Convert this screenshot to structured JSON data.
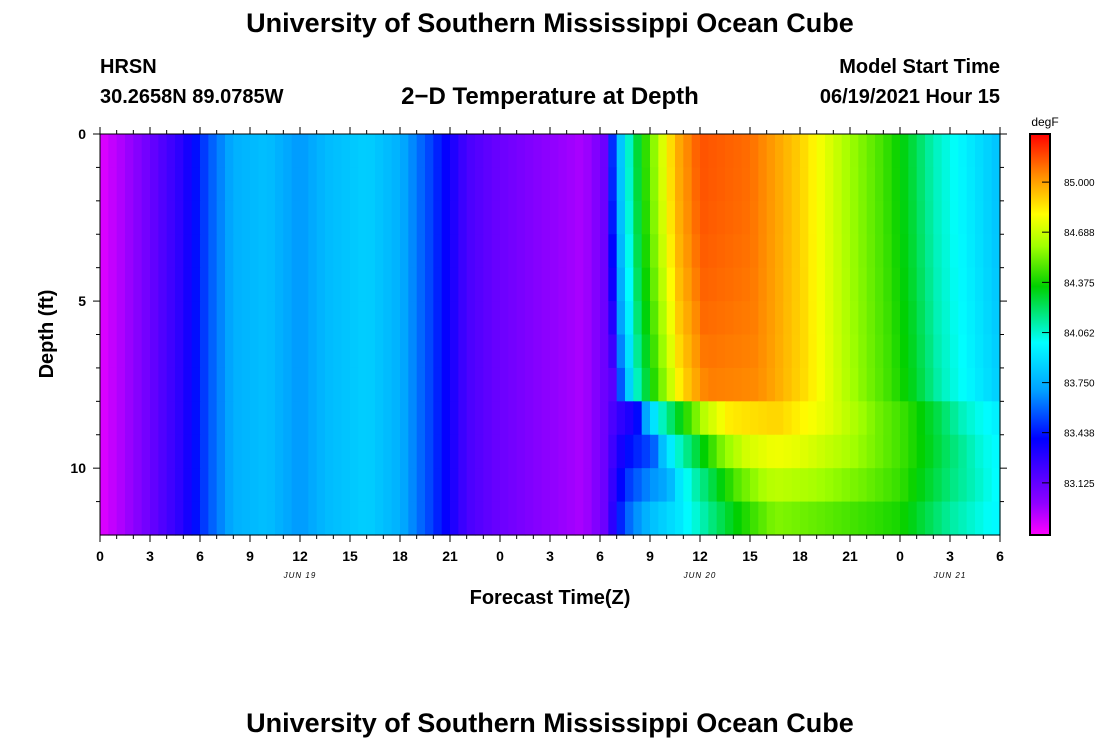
{
  "page": {
    "title_top": "University of Southern Mississippi Ocean Cube",
    "title_bottom": "University of Southern Mississippi Ocean Cube",
    "station": "HRSN",
    "coords": "30.2658N  89.0785W",
    "subtitle": "2−D Temperature at Depth",
    "model_start_label": "Model Start Time",
    "model_start_value": "06/19/2021 Hour 15"
  },
  "chart_data": {
    "type": "heatmap",
    "title": "2−D Temperature at Depth",
    "xlabel": "Forecast Time(Z)",
    "ylabel": "Depth (ft)",
    "xlim": [
      0,
      54
    ],
    "ylim": [
      0,
      12
    ],
    "x_ticks": [
      0,
      3,
      6,
      9,
      12,
      15,
      18,
      21,
      24,
      27,
      30,
      33,
      36,
      39,
      42,
      45,
      48,
      51,
      54
    ],
    "x_tick_labels": [
      "0",
      "3",
      "6",
      "9",
      "12",
      "15",
      "18",
      "21",
      "0",
      "3",
      "6",
      "9",
      "12",
      "15",
      "18",
      "21",
      "0",
      "3",
      "6"
    ],
    "y_ticks": [
      0,
      5,
      10
    ],
    "y_tick_labels": [
      "0",
      "5",
      "10"
    ],
    "date_labels": [
      {
        "x": 12,
        "text": "JUN 19"
      },
      {
        "x": 36,
        "text": "JUN 20"
      },
      {
        "x": 51,
        "text": "JUN 21"
      }
    ],
    "colorbar": {
      "unit": "degF",
      "min": 82.8,
      "max": 85.3,
      "ticks": [
        83.125,
        83.438,
        83.75,
        84.062,
        84.375,
        84.688,
        85.0
      ],
      "tick_labels": [
        "83.125",
        "83.438",
        "83.750",
        "84.062",
        "84.375",
        "84.688",
        "85.000"
      ]
    },
    "surface_profile": [
      [
        0,
        82.85
      ],
      [
        2,
        83.0
      ],
      [
        5,
        83.3
      ],
      [
        6.5,
        83.55
      ],
      [
        8,
        83.75
      ],
      [
        10,
        83.8
      ],
      [
        12,
        83.68
      ],
      [
        13.5,
        83.78
      ],
      [
        16,
        83.85
      ],
      [
        18,
        83.75
      ],
      [
        20,
        83.5
      ],
      [
        22,
        83.2
      ],
      [
        24,
        83.1
      ],
      [
        27,
        83.0
      ],
      [
        29,
        82.95
      ],
      [
        30.3,
        83.1
      ],
      [
        31,
        83.7
      ],
      [
        32,
        84.2
      ],
      [
        33.5,
        84.65
      ],
      [
        34.5,
        84.95
      ],
      [
        36,
        85.15
      ],
      [
        39,
        85.1
      ],
      [
        42,
        84.9
      ],
      [
        45,
        84.6
      ],
      [
        47,
        84.45
      ],
      [
        48.5,
        84.3
      ],
      [
        50,
        84.1
      ],
      [
        52,
        83.95
      ],
      [
        54,
        83.8
      ]
    ],
    "deep_profile": [
      [
        0,
        82.85
      ],
      [
        6,
        83.3
      ],
      [
        30.3,
        83.1
      ],
      [
        31.5,
        83.6
      ],
      [
        33,
        83.85
      ],
      [
        36,
        84.1
      ],
      [
        38,
        84.3
      ],
      [
        39.5,
        84.42
      ],
      [
        40.5,
        84.5
      ],
      [
        48,
        84.35
      ],
      [
        51,
        84.1
      ],
      [
        54,
        83.95
      ]
    ],
    "lag_hours_at_bottom": 5,
    "warm_layer_depth_ft": 7.5
  }
}
